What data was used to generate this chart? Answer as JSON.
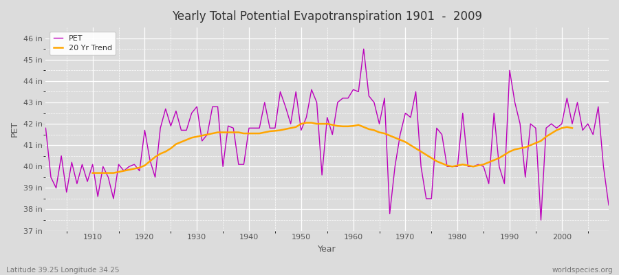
{
  "title": "Yearly Total Potential Evapotranspiration 1901  -  2009",
  "xlabel": "Year",
  "ylabel": "PET",
  "bg_color": "#dcdcdc",
  "plot_bg_color": "#dcdcdc",
  "pet_color": "#bb00bb",
  "trend_color": "#ffa500",
  "ylim_min": 37.0,
  "ylim_max": 46.5,
  "yticks": [
    37,
    38,
    39,
    40,
    41,
    42,
    43,
    44,
    45,
    46
  ],
  "ytick_labels": [
    "37 in",
    "38 in",
    "39 in",
    "40 in",
    "41 in",
    "42 in",
    "43 in",
    "44 in",
    "45 in",
    "46 in"
  ],
  "xticks": [
    1910,
    1920,
    1930,
    1940,
    1950,
    1960,
    1970,
    1980,
    1990,
    2000
  ],
  "xlim_min": 1901,
  "xlim_max": 2009,
  "years": [
    1901,
    1902,
    1903,
    1904,
    1905,
    1906,
    1907,
    1908,
    1909,
    1910,
    1911,
    1912,
    1913,
    1914,
    1915,
    1916,
    1917,
    1918,
    1919,
    1920,
    1921,
    1922,
    1923,
    1924,
    1925,
    1926,
    1927,
    1928,
    1929,
    1930,
    1931,
    1932,
    1933,
    1934,
    1935,
    1936,
    1937,
    1938,
    1939,
    1940,
    1941,
    1942,
    1943,
    1944,
    1945,
    1946,
    1947,
    1948,
    1949,
    1950,
    1951,
    1952,
    1953,
    1954,
    1955,
    1956,
    1957,
    1958,
    1959,
    1960,
    1961,
    1962,
    1963,
    1964,
    1965,
    1966,
    1967,
    1968,
    1969,
    1970,
    1971,
    1972,
    1973,
    1974,
    1975,
    1976,
    1977,
    1978,
    1979,
    1980,
    1981,
    1982,
    1983,
    1984,
    1985,
    1986,
    1987,
    1988,
    1989,
    1990,
    1991,
    1992,
    1993,
    1994,
    1995,
    1996,
    1997,
    1998,
    1999,
    2000,
    2001,
    2002,
    2003,
    2004,
    2005,
    2006,
    2007,
    2008,
    2009
  ],
  "pet_values": [
    41.8,
    39.5,
    39.0,
    40.5,
    38.8,
    40.2,
    39.2,
    40.1,
    39.3,
    40.1,
    38.6,
    40.0,
    39.5,
    38.5,
    40.1,
    39.8,
    40.0,
    40.1,
    39.8,
    41.7,
    40.3,
    39.5,
    41.8,
    42.7,
    41.9,
    42.6,
    41.7,
    41.7,
    42.5,
    42.8,
    41.2,
    41.5,
    42.8,
    42.8,
    40.0,
    41.9,
    41.8,
    40.1,
    40.1,
    41.8,
    41.8,
    41.8,
    43.0,
    41.8,
    41.8,
    43.5,
    42.8,
    42.0,
    43.5,
    41.7,
    42.3,
    43.6,
    43.0,
    39.6,
    42.3,
    41.5,
    43.0,
    43.2,
    43.2,
    43.6,
    43.5,
    45.5,
    43.3,
    43.0,
    42.0,
    43.2,
    37.8,
    40.0,
    41.5,
    42.5,
    42.3,
    43.5,
    40.0,
    38.5,
    38.5,
    41.8,
    41.5,
    40.0,
    40.0,
    40.0,
    42.5,
    40.0,
    40.0,
    40.1,
    40.0,
    39.2,
    42.5,
    40.0,
    39.2,
    44.5,
    43.0,
    42.0,
    39.5,
    42.0,
    41.8,
    37.5,
    41.8,
    42.0,
    41.8,
    42.0,
    43.2,
    42.0,
    43.0,
    41.7,
    42.0,
    41.5,
    42.8,
    40.0,
    38.2
  ],
  "trend_values": [
    null,
    null,
    null,
    null,
    null,
    null,
    null,
    null,
    null,
    39.7,
    39.7,
    39.7,
    39.7,
    39.7,
    39.75,
    39.8,
    39.85,
    39.9,
    39.95,
    40.05,
    40.25,
    40.45,
    40.6,
    40.7,
    40.85,
    41.05,
    41.15,
    41.25,
    41.35,
    41.4,
    41.45,
    41.5,
    41.55,
    41.6,
    41.6,
    41.6,
    41.6,
    41.6,
    41.55,
    41.55,
    41.55,
    41.55,
    41.6,
    41.65,
    41.67,
    41.7,
    41.75,
    41.8,
    41.85,
    42.0,
    42.05,
    42.05,
    42.0,
    42.0,
    42.0,
    41.95,
    41.9,
    41.88,
    41.88,
    41.9,
    41.95,
    41.85,
    41.75,
    41.7,
    41.6,
    41.55,
    41.45,
    41.35,
    41.25,
    41.15,
    41.0,
    40.85,
    40.7,
    40.55,
    40.4,
    40.25,
    40.15,
    40.05,
    40.0,
    40.05,
    40.1,
    40.05,
    40.0,
    40.05,
    40.1,
    40.2,
    40.3,
    40.4,
    40.55,
    40.7,
    40.8,
    40.85,
    40.9,
    41.0,
    41.1,
    41.2,
    41.4,
    41.55,
    41.7,
    41.8,
    41.85,
    41.8,
    null,
    null,
    null,
    null,
    null
  ],
  "footnote_left": "Latitude 39.25 Longitude 34.25",
  "footnote_right": "worldspecies.org",
  "legend_pet_label": "PET",
  "legend_trend_label": "20 Yr Trend"
}
